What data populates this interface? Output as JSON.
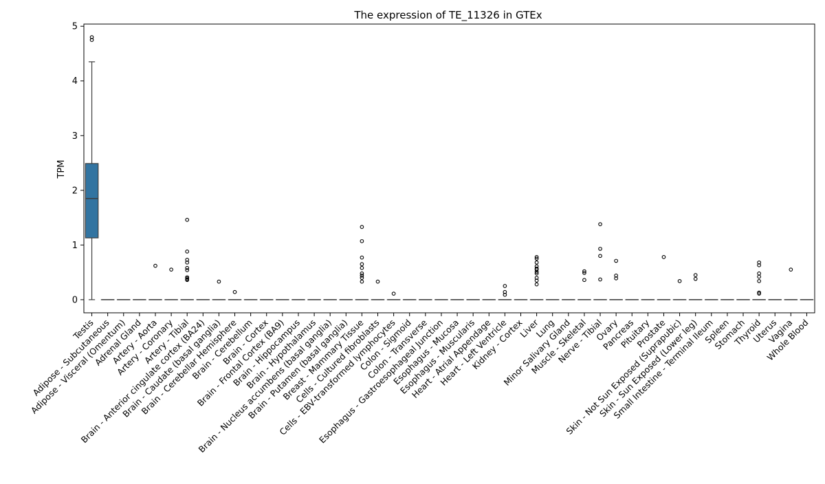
{
  "chart_data": {
    "type": "box",
    "title": "The expression of TE_11326 in GTEx",
    "xlabel": "",
    "ylabel": "TPM",
    "ylim": [
      -0.24,
      5.04
    ],
    "yticks": [
      0,
      1,
      2,
      3,
      4,
      5
    ],
    "grid": false,
    "legend": "none",
    "colors": {
      "box_fill": "#3274a1",
      "median_line": "#3d3d3d",
      "whisker": "#3d3d3d",
      "outlier_edge": "#000000"
    },
    "categories": [
      "Testis",
      "Adipose - Subcutaneous",
      "Adipose - Visceral (Omentum)",
      "Adrenal Gland",
      "Artery - Aorta",
      "Artery - Coronary",
      "Artery - Tibial",
      "Brain - Anterior cingulate cortex (BA24)",
      "Brain - Caudate (basal ganglia)",
      "Brain - Cerebellar Hemisphere",
      "Brain - Cerebellum",
      "Brain - Cortex",
      "Brain - Frontal Cortex (BA9)",
      "Brain - Hippocampus",
      "Brain - Hypothalamus",
      "Brain - Nucleus accumbens (basal ganglia)",
      "Brain - Putamen (basal ganglia)",
      "Breast - Mammary Tissue",
      "Cells - Cultured fibroblasts",
      "Cells - EBV-transformed lymphocytes",
      "Colon - Sigmoid",
      "Colon - Transverse",
      "Esophagus - Gastroesophageal Junction",
      "Esophagus - Mucosa",
      "Esophagus - Muscularis",
      "Heart - Atrial Appendage",
      "Heart - Left Ventricle",
      "Kidney - Cortex",
      "Liver",
      "Lung",
      "Minor Salivary Gland",
      "Muscle - Skeletal",
      "Nerve - Tibial",
      "Ovary",
      "Pancreas",
      "Pituitary",
      "Prostate",
      "Skin - Not Sun Exposed (Suprapubic)",
      "Skin - Sun Exposed (Lower leg)",
      "Small Intestine - Terminal Ileum",
      "Spleen",
      "Stomach",
      "Thyroid",
      "Uterus",
      "Vagina",
      "Whole Blood"
    ],
    "boxes": [
      {
        "q1": 1.13,
        "median": 1.85,
        "q3": 2.49,
        "whisker_low": 0.0,
        "whisker_high": 4.35,
        "outliers": [
          4.75,
          4.8
        ]
      },
      {
        "q1": 0,
        "median": 0,
        "q3": 0,
        "whisker_low": 0,
        "whisker_high": 0,
        "outliers": []
      },
      {
        "q1": 0,
        "median": 0,
        "q3": 0,
        "whisker_low": 0,
        "whisker_high": 0,
        "outliers": []
      },
      {
        "q1": 0,
        "median": 0,
        "q3": 0,
        "whisker_low": 0,
        "whisker_high": 0,
        "outliers": []
      },
      {
        "q1": 0,
        "median": 0,
        "q3": 0,
        "whisker_low": 0,
        "whisker_high": 0,
        "outliers": [
          0.62
        ]
      },
      {
        "q1": 0,
        "median": 0,
        "q3": 0,
        "whisker_low": 0,
        "whisker_high": 0,
        "outliers": [
          0.55
        ]
      },
      {
        "q1": 0,
        "median": 0,
        "q3": 0,
        "whisker_low": 0,
        "whisker_high": 0,
        "outliers": [
          1.46,
          0.88,
          0.73,
          0.68,
          0.58,
          0.54,
          0.41,
          0.39,
          0.37,
          0.36
        ]
      },
      {
        "q1": 0,
        "median": 0,
        "q3": 0,
        "whisker_low": 0,
        "whisker_high": 0,
        "outliers": []
      },
      {
        "q1": 0,
        "median": 0,
        "q3": 0,
        "whisker_low": 0,
        "whisker_high": 0,
        "outliers": [
          0.33
        ]
      },
      {
        "q1": 0,
        "median": 0,
        "q3": 0,
        "whisker_low": 0,
        "whisker_high": 0,
        "outliers": [
          0.14
        ]
      },
      {
        "q1": 0,
        "median": 0,
        "q3": 0,
        "whisker_low": 0,
        "whisker_high": 0,
        "outliers": []
      },
      {
        "q1": 0,
        "median": 0,
        "q3": 0,
        "whisker_low": 0,
        "whisker_high": 0,
        "outliers": []
      },
      {
        "q1": 0,
        "median": 0,
        "q3": 0,
        "whisker_low": 0,
        "whisker_high": 0,
        "outliers": []
      },
      {
        "q1": 0,
        "median": 0,
        "q3": 0,
        "whisker_low": 0,
        "whisker_high": 0,
        "outliers": []
      },
      {
        "q1": 0,
        "median": 0,
        "q3": 0,
        "whisker_low": 0,
        "whisker_high": 0,
        "outliers": []
      },
      {
        "q1": 0,
        "median": 0,
        "q3": 0,
        "whisker_low": 0,
        "whisker_high": 0,
        "outliers": []
      },
      {
        "q1": 0,
        "median": 0,
        "q3": 0,
        "whisker_low": 0,
        "whisker_high": 0,
        "outliers": []
      },
      {
        "q1": 0,
        "median": 0,
        "q3": 0,
        "whisker_low": 0,
        "whisker_high": 0,
        "outliers": [
          1.33,
          1.07,
          0.77,
          0.65,
          0.58,
          0.48,
          0.44,
          0.4,
          0.33
        ]
      },
      {
        "q1": 0,
        "median": 0,
        "q3": 0,
        "whisker_low": 0,
        "whisker_high": 0,
        "outliers": [
          0.33
        ]
      },
      {
        "q1": 0,
        "median": 0,
        "q3": 0,
        "whisker_low": 0,
        "whisker_high": 0,
        "outliers": [
          0.11
        ]
      },
      {
        "q1": 0,
        "median": 0,
        "q3": 0,
        "whisker_low": 0,
        "whisker_high": 0,
        "outliers": []
      },
      {
        "q1": 0,
        "median": 0,
        "q3": 0,
        "whisker_low": 0,
        "whisker_high": 0,
        "outliers": []
      },
      {
        "q1": 0,
        "median": 0,
        "q3": 0,
        "whisker_low": 0,
        "whisker_high": 0,
        "outliers": []
      },
      {
        "q1": 0,
        "median": 0,
        "q3": 0,
        "whisker_low": 0,
        "whisker_high": 0,
        "outliers": []
      },
      {
        "q1": 0,
        "median": 0,
        "q3": 0,
        "whisker_low": 0,
        "whisker_high": 0,
        "outliers": []
      },
      {
        "q1": 0,
        "median": 0,
        "q3": 0,
        "whisker_low": 0,
        "whisker_high": 0,
        "outliers": []
      },
      {
        "q1": 0,
        "median": 0,
        "q3": 0,
        "whisker_low": 0,
        "whisker_high": 0,
        "outliers": [
          0.25,
          0.14,
          0.09
        ]
      },
      {
        "q1": 0,
        "median": 0,
        "q3": 0,
        "whisker_low": 0,
        "whisker_high": 0,
        "outliers": []
      },
      {
        "q1": 0,
        "median": 0,
        "q3": 0,
        "whisker_low": 0,
        "whisker_high": 0,
        "outliers": [
          0.78,
          0.75,
          0.68,
          0.61,
          0.57,
          0.55,
          0.51,
          0.48,
          0.4,
          0.35,
          0.28
        ]
      },
      {
        "q1": 0,
        "median": 0,
        "q3": 0,
        "whisker_low": 0,
        "whisker_high": 0,
        "outliers": []
      },
      {
        "q1": 0,
        "median": 0,
        "q3": 0,
        "whisker_low": 0,
        "whisker_high": 0,
        "outliers": []
      },
      {
        "q1": 0,
        "median": 0,
        "q3": 0,
        "whisker_low": 0,
        "whisker_high": 0,
        "outliers": [
          0.52,
          0.49,
          0.36
        ]
      },
      {
        "q1": 0,
        "median": 0,
        "q3": 0,
        "whisker_low": 0,
        "whisker_high": 0,
        "outliers": [
          1.38,
          0.93,
          0.8,
          0.37
        ]
      },
      {
        "q1": 0,
        "median": 0,
        "q3": 0,
        "whisker_low": 0,
        "whisker_high": 0,
        "outliers": [
          0.71,
          0.44,
          0.39
        ]
      },
      {
        "q1": 0,
        "median": 0,
        "q3": 0,
        "whisker_low": 0,
        "whisker_high": 0,
        "outliers": []
      },
      {
        "q1": 0,
        "median": 0,
        "q3": 0,
        "whisker_low": 0,
        "whisker_high": 0,
        "outliers": []
      },
      {
        "q1": 0,
        "median": 0,
        "q3": 0,
        "whisker_low": 0,
        "whisker_high": 0,
        "outliers": [
          0.78
        ]
      },
      {
        "q1": 0,
        "median": 0,
        "q3": 0,
        "whisker_low": 0,
        "whisker_high": 0,
        "outliers": [
          0.34
        ]
      },
      {
        "q1": 0,
        "median": 0,
        "q3": 0,
        "whisker_low": 0,
        "whisker_high": 0,
        "outliers": [
          0.45,
          0.38
        ]
      },
      {
        "q1": 0,
        "median": 0,
        "q3": 0,
        "whisker_low": 0,
        "whisker_high": 0,
        "outliers": []
      },
      {
        "q1": 0,
        "median": 0,
        "q3": 0,
        "whisker_low": 0,
        "whisker_high": 0,
        "outliers": []
      },
      {
        "q1": 0,
        "median": 0,
        "q3": 0,
        "whisker_low": 0,
        "whisker_high": 0,
        "outliers": []
      },
      {
        "q1": 0,
        "median": 0,
        "q3": 0,
        "whisker_low": 0,
        "whisker_high": 0,
        "outliers": [
          0.68,
          0.63,
          0.48,
          0.42,
          0.34,
          0.13,
          0.11
        ]
      },
      {
        "q1": 0,
        "median": 0,
        "q3": 0,
        "whisker_low": 0,
        "whisker_high": 0,
        "outliers": []
      },
      {
        "q1": 0,
        "median": 0,
        "q3": 0,
        "whisker_low": 0,
        "whisker_high": 0,
        "outliers": [
          0.55
        ]
      },
      {
        "q1": 0,
        "median": 0,
        "q3": 0,
        "whisker_low": 0,
        "whisker_high": 0,
        "outliers": []
      }
    ]
  }
}
